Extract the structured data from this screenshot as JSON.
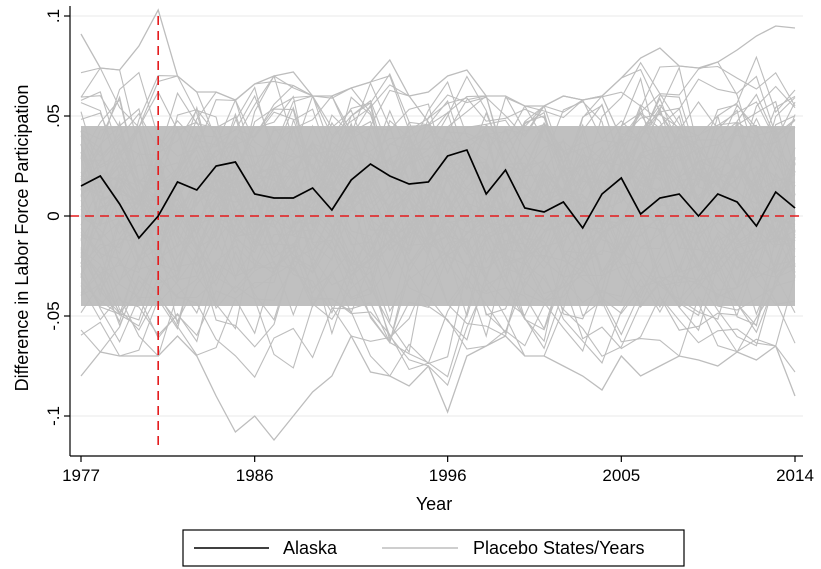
{
  "chart_data": {
    "type": "line",
    "xlabel": "Year",
    "ylabel": "Difference in Labor Force Participation",
    "xlim": [
      1977,
      2014
    ],
    "ylim": [
      -0.12,
      0.105
    ],
    "x_ticks": [
      1977,
      1986,
      1996,
      2005,
      2014
    ],
    "x_tick_labels": [
      "1977",
      "1986",
      "1996",
      "2005",
      "2014"
    ],
    "y_ticks": [
      0.1,
      0.05,
      0,
      -0.05,
      -0.1
    ],
    "y_tick_labels": [
      ".1",
      ".05",
      "0",
      "-.05",
      "-.1"
    ],
    "grid": "horizontal",
    "legend": {
      "placement": "bottom",
      "entries": [
        {
          "label": "Alaska",
          "color": "#000000"
        },
        {
          "label": "Placebo States/Years",
          "color": "#bdbdbd"
        }
      ]
    },
    "reference_lines": {
      "vertical_x": 1981,
      "horizontal_y": 0,
      "color": "#e41a1c",
      "style": "dashed"
    },
    "series": [
      {
        "name": "Alaska",
        "color": "#000000",
        "x": [
          1977,
          1978,
          1979,
          1980,
          1981,
          1982,
          1983,
          1984,
          1985,
          1986,
          1987,
          1988,
          1989,
          1990,
          1991,
          1992,
          1993,
          1994,
          1995,
          1996,
          1997,
          1998,
          1999,
          2000,
          2001,
          2002,
          2003,
          2004,
          2005,
          2006,
          2007,
          2008,
          2009,
          2010,
          2011,
          2012,
          2013,
          2014
        ],
        "values": [
          0.015,
          0.02,
          0.006,
          -0.011,
          0.0,
          0.017,
          0.013,
          0.025,
          0.027,
          0.011,
          0.009,
          0.009,
          0.014,
          0.003,
          0.018,
          0.026,
          0.02,
          0.016,
          0.017,
          0.03,
          0.033,
          0.011,
          0.023,
          0.004,
          0.002,
          0.007,
          -0.006,
          0.011,
          0.019,
          0.001,
          0.009,
          0.011,
          0.0,
          0.011,
          0.007,
          -0.005,
          0.012,
          0.004
        ]
      },
      {
        "name": "Placebo States/Years",
        "color": "#bdbdbd",
        "x": [
          1977,
          1978,
          1979,
          1980,
          1981,
          1982,
          1983,
          1984,
          1985,
          1986,
          1987,
          1988,
          1989,
          1990,
          1991,
          1992,
          1993,
          1994,
          1995,
          1996,
          1997,
          1998,
          1999,
          2000,
          2001,
          2002,
          2003,
          2004,
          2005,
          2006,
          2007,
          2008,
          2009,
          2010,
          2011,
          2012,
          2013,
          2014
        ],
        "upper_envelope": [
          0.091,
          0.074,
          0.073,
          0.085,
          0.103,
          0.07,
          0.062,
          0.062,
          0.058,
          0.066,
          0.07,
          0.072,
          0.06,
          0.06,
          0.064,
          0.067,
          0.078,
          0.06,
          0.062,
          0.07,
          0.073,
          0.06,
          0.06,
          0.055,
          0.055,
          0.06,
          0.058,
          0.06,
          0.069,
          0.079,
          0.084,
          0.075,
          0.074,
          0.077,
          0.083,
          0.09,
          0.095,
          0.094
        ],
        "lower_envelope": [
          -0.08,
          -0.068,
          -0.07,
          -0.07,
          -0.07,
          -0.06,
          -0.07,
          -0.09,
          -0.108,
          -0.1,
          -0.112,
          -0.1,
          -0.088,
          -0.08,
          -0.06,
          -0.078,
          -0.08,
          -0.085,
          -0.075,
          -0.098,
          -0.07,
          -0.065,
          -0.06,
          -0.07,
          -0.07,
          -0.075,
          -0.08,
          -0.087,
          -0.07,
          -0.08,
          -0.075,
          -0.07,
          -0.072,
          -0.075,
          -0.068,
          -0.072,
          -0.065,
          -0.09
        ]
      }
    ]
  }
}
